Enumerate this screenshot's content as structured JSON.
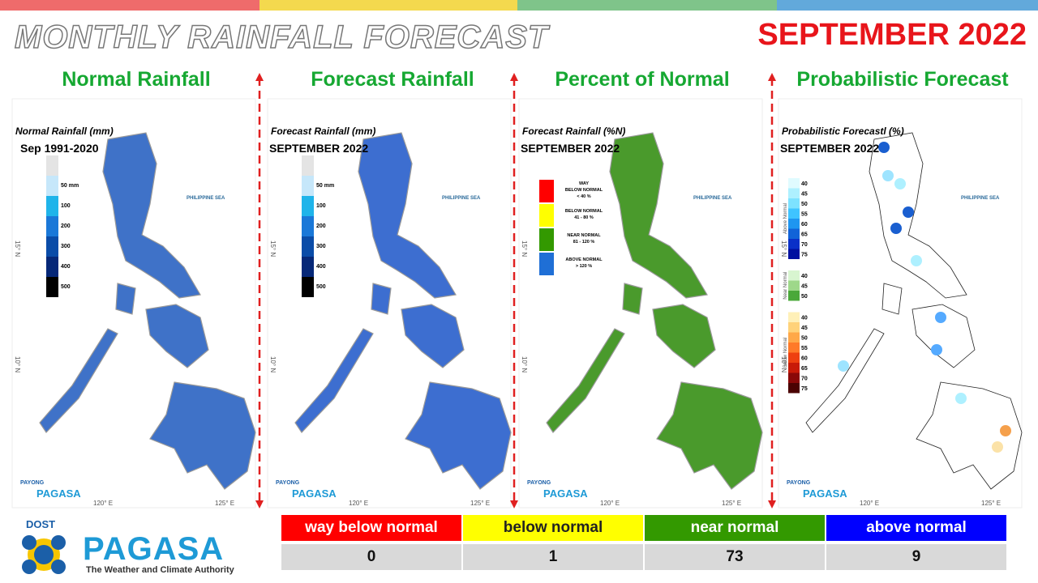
{
  "header": {
    "title": "MONTHLY RAINFALL FORECAST",
    "date": "SEPTEMBER 2022"
  },
  "panels": [
    {
      "heading": "Normal Rainfall",
      "map_title": "Normal Rainfall (mm)",
      "map_subtitle": "Sep 1991-2020",
      "legend": [
        "50 mm",
        "100",
        "200",
        "300",
        "400",
        "500"
      ]
    },
    {
      "heading": "Forecast Rainfall",
      "map_title": "Forecast Rainfall (mm)",
      "map_subtitle": "SEPTEMBER 2022",
      "legend": [
        "50 mm",
        "100",
        "200",
        "300",
        "400",
        "500"
      ]
    },
    {
      "heading": "Percent of Normal",
      "map_title": "Forecast Rainfall (%N)",
      "map_subtitle": "SEPTEMBER 2022",
      "legend": [
        [
          "WAY",
          "BELOW NORMAL",
          "< 40 %"
        ],
        [
          "BELOW NORMAL",
          "41 - 80 %"
        ],
        [
          "NEAR NORMAL",
          "81 - 120 %"
        ],
        [
          "ABOVE NORMAL",
          "> 120 %"
        ]
      ]
    },
    {
      "heading": "Probabilistic Forecast",
      "map_title": "Probabilistic Forecastl (%)",
      "map_subtitle": "SEPTEMBER 2022",
      "legend_groups": [
        {
          "name": "Above Normal",
          "labels": [
            "40",
            "45",
            "50",
            "55",
            "60",
            "65",
            "70",
            "75"
          ]
        },
        {
          "name": "Near Normal",
          "labels": [
            "40",
            "45",
            "50"
          ]
        },
        {
          "name": "Below Normal",
          "labels": [
            "40",
            "45",
            "50",
            "55",
            "60",
            "65",
            "70",
            "75"
          ]
        }
      ]
    }
  ],
  "map_labels": {
    "sea": "PHILIPPINE SEA",
    "lon1": "120° E",
    "lon2": "125° E",
    "lat1": "15° N",
    "lat2": "10° N",
    "logo_top": "PAYONG",
    "logo_name": "PAGASA"
  },
  "summary": {
    "categories": [
      "way below normal",
      "below normal",
      "near normal",
      "above normal"
    ],
    "colors": [
      "#ff0000",
      "#ffff00",
      "#339900",
      "#0000ff"
    ],
    "counts": [
      0,
      1,
      73,
      9
    ]
  },
  "logo": {
    "agency": "DOST",
    "name": "PAGASA",
    "tagline": "The Weather and Climate Authority"
  }
}
